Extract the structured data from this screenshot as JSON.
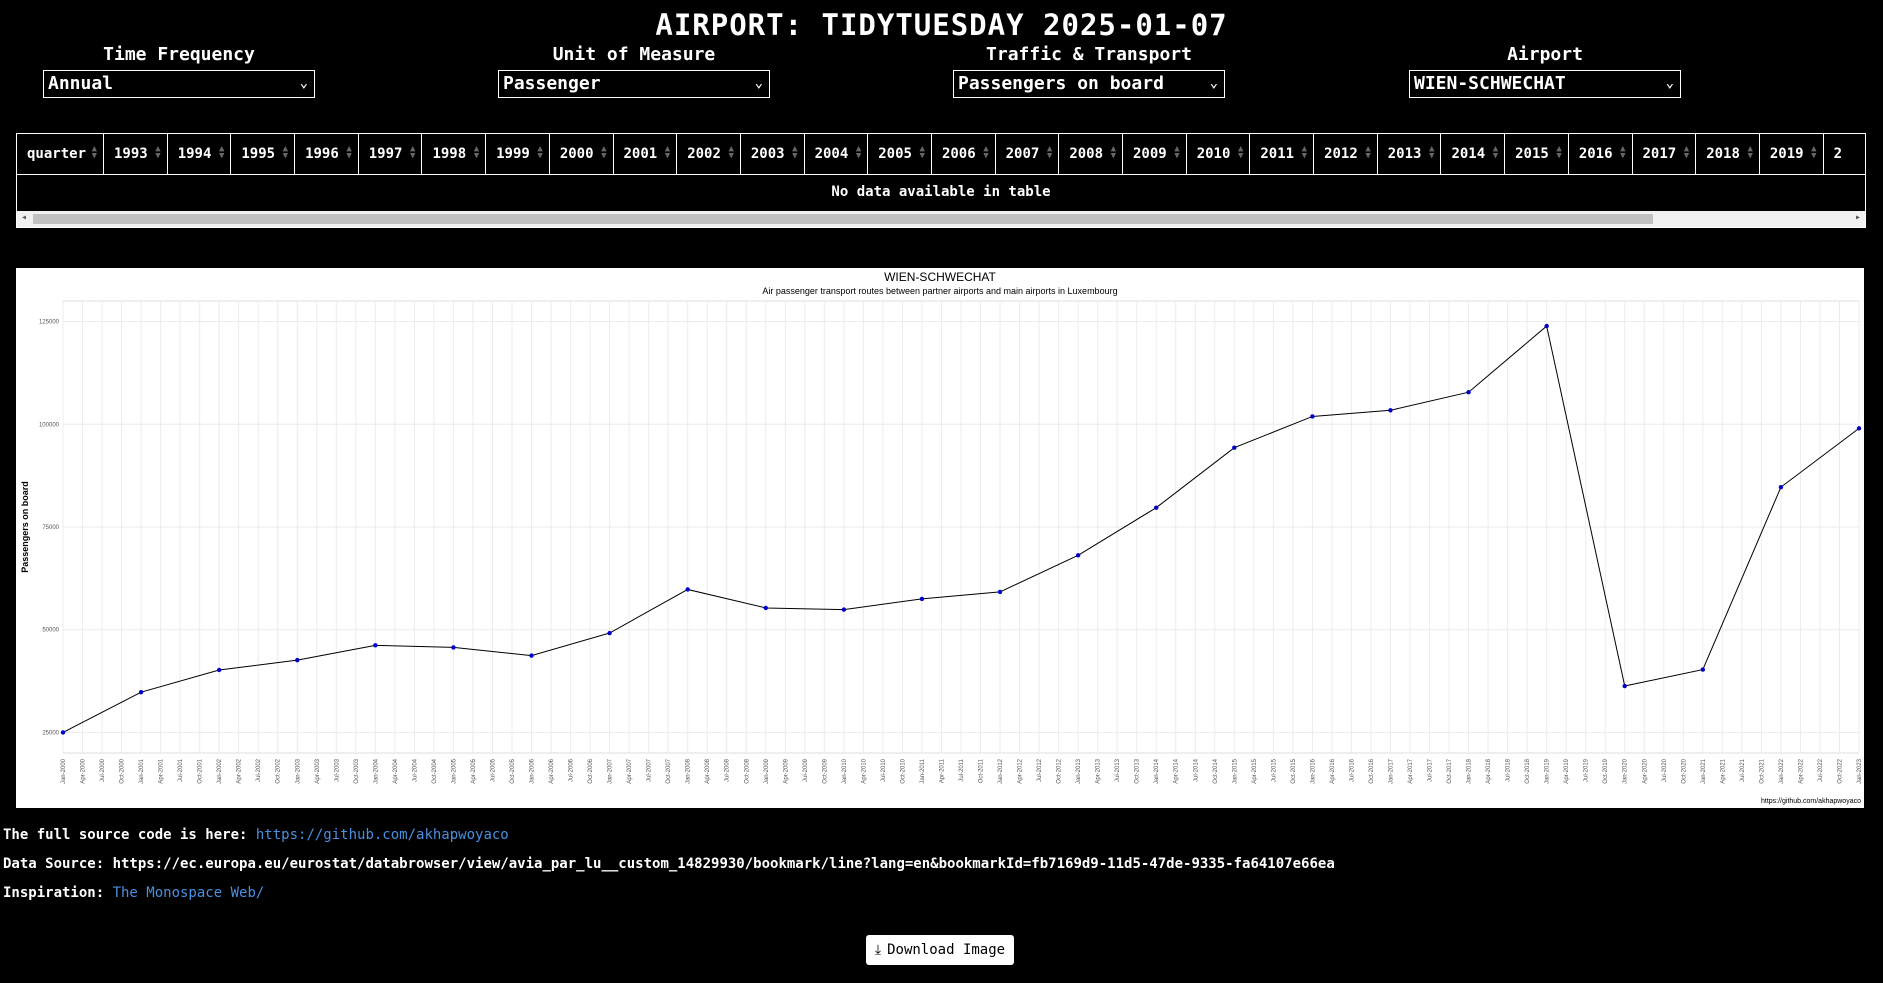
{
  "page_title": "AIRPORT: TIDYTUESDAY 2025-01-07",
  "filters": [
    {
      "label": "Time Frequency",
      "value": "Annual"
    },
    {
      "label": "Unit of Measure",
      "value": "Passenger"
    },
    {
      "label": "Traffic & Transport",
      "value": "Passengers on board"
    },
    {
      "label": "Airport",
      "value": "WIEN-SCHWECHAT"
    }
  ],
  "table": {
    "columns": [
      "quarter",
      "1993",
      "1994",
      "1995",
      "1996",
      "1997",
      "1998",
      "1999",
      "2000",
      "2001",
      "2002",
      "2003",
      "2004",
      "2005",
      "2006",
      "2007",
      "2008",
      "2009",
      "2010",
      "2011",
      "2012",
      "2013",
      "2014",
      "2015",
      "2016",
      "2017",
      "2018",
      "2019",
      "2"
    ],
    "empty_message": "No data available in table"
  },
  "chart_data": {
    "type": "line",
    "title": "WIEN-SCHWECHAT",
    "subtitle": "Air passenger transport routes between partner airports and main airports in Luxembourg",
    "ylabel": "Passengers on board",
    "xlabel": "",
    "watermark": "https://github.com/akhapwoyaco",
    "ylim": [
      20000,
      130000
    ],
    "yticks": [
      25000,
      50000,
      75000,
      100000,
      125000
    ],
    "grid": true,
    "line_color": "#000000",
    "point_color": "#0000cc",
    "x_ticks": [
      "Jan-2000",
      "Apr-2000",
      "Jul-2000",
      "Oct-2000",
      "Jan-2001",
      "Apr-2001",
      "Jul-2001",
      "Oct-2001",
      "Jan-2002",
      "Apr-2002",
      "Jul-2002",
      "Oct-2002",
      "Jan-2003",
      "Apr-2003",
      "Jul-2003",
      "Oct-2003",
      "Jan-2004",
      "Apr-2004",
      "Jul-2004",
      "Oct-2004",
      "Jan-2005",
      "Apr-2005",
      "Jul-2005",
      "Oct-2005",
      "Jan-2006",
      "Apr-2006",
      "Jul-2006",
      "Oct-2006",
      "Jan-2007",
      "Apr-2007",
      "Jul-2007",
      "Oct-2007",
      "Jan-2008",
      "Apr-2008",
      "Jul-2008",
      "Oct-2008",
      "Jan-2009",
      "Apr-2009",
      "Jul-2009",
      "Oct-2009",
      "Jan-2010",
      "Apr-2010",
      "Jul-2010",
      "Oct-2010",
      "Jan-2011",
      "Apr-2011",
      "Jul-2011",
      "Oct-2011",
      "Jan-2012",
      "Apr-2012",
      "Jul-2012",
      "Oct-2012",
      "Jan-2013",
      "Apr-2013",
      "Jul-2013",
      "Oct-2013",
      "Jan-2014",
      "Apr-2014",
      "Jul-2014",
      "Oct-2014",
      "Jan-2015",
      "Apr-2015",
      "Jul-2015",
      "Oct-2015",
      "Jan-2016",
      "Apr-2016",
      "Jul-2016",
      "Oct-2016",
      "Jan-2017",
      "Apr-2017",
      "Jul-2017",
      "Oct-2017",
      "Jan-2018",
      "Apr-2018",
      "Jul-2018",
      "Oct-2018",
      "Jan-2019",
      "Apr-2019",
      "Jul-2019",
      "Oct-2019",
      "Jan-2020",
      "Apr-2020",
      "Jul-2020",
      "Oct-2020",
      "Jan-2021",
      "Apr-2021",
      "Jul-2021",
      "Oct-2021",
      "Jan-2022",
      "Apr-2022",
      "Jul-2022",
      "Oct-2022",
      "Jan-2023"
    ],
    "x": [
      "2000",
      "2001",
      "2002",
      "2003",
      "2004",
      "2005",
      "2006",
      "2007",
      "2008",
      "2009",
      "2010",
      "2011",
      "2012",
      "2013",
      "2014",
      "2015",
      "2016",
      "2017",
      "2018",
      "2019",
      "2020",
      "2021",
      "2022",
      "2023"
    ],
    "values": [
      25000,
      34800,
      40200,
      42600,
      46200,
      45700,
      43700,
      49200,
      59800,
      55300,
      54900,
      57500,
      59200,
      68100,
      79700,
      94300,
      101900,
      103400,
      107800,
      123900,
      36300,
      40300,
      84700,
      99000
    ]
  },
  "info": {
    "source_label": "The full source code is here: ",
    "source_link": "https://github.com/akhapwoyaco",
    "data_label": "Data Source: ",
    "data_value": "https://ec.europa.eu/eurostat/databrowser/view/avia_par_lu__custom_14829930/bookmark/line?lang=en&bookmarkId=fb7169d9-11d5-47de-9335-fa64107e66ea",
    "inspiration_label": "Inspiration: ",
    "inspiration_link": "The Monospace Web/"
  },
  "download_label": "Download Image",
  "icons": {
    "download": "download-icon",
    "chevron": "chevron-down-icon",
    "sort": "sort-icon"
  }
}
